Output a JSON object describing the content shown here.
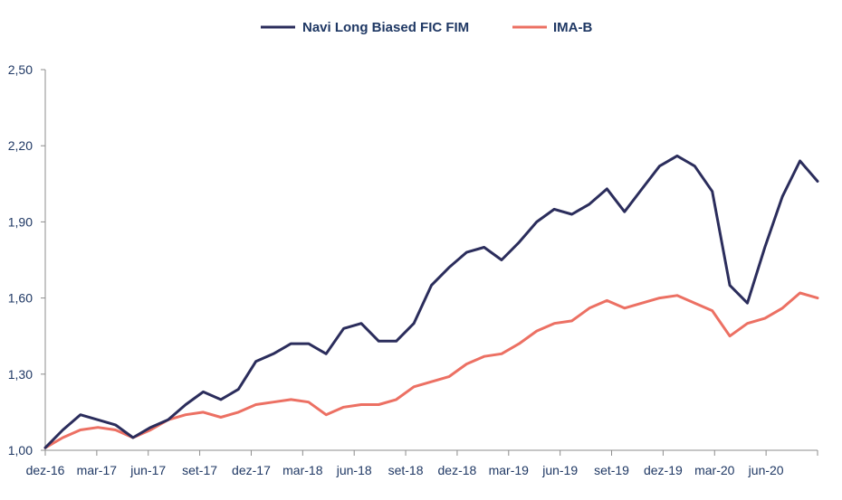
{
  "chart_data": {
    "type": "line",
    "title": "",
    "xlabel": "",
    "ylabel": "",
    "ylim": [
      1.0,
      2.5
    ],
    "grid": false,
    "legend_position": "top-center",
    "y_ticks": [
      "1,00",
      "1,30",
      "1,60",
      "1,90",
      "2,20",
      "2,50"
    ],
    "y_tick_values": [
      1.0,
      1.3,
      1.6,
      1.9,
      2.2,
      2.5
    ],
    "x_ticks": [
      "dez-16",
      "mar-17",
      "jun-17",
      "set-17",
      "dez-17",
      "mar-18",
      "jun-18",
      "set-18",
      "dez-18",
      "mar-19",
      "jun-19",
      "set-19",
      "dez-19",
      "mar-20",
      "jun-20"
    ],
    "x": [
      "2016-12",
      "2017-01",
      "2017-02",
      "2017-03",
      "2017-04",
      "2017-05",
      "2017-06",
      "2017-07",
      "2017-08",
      "2017-09",
      "2017-10",
      "2017-11",
      "2017-12",
      "2018-01",
      "2018-02",
      "2018-03",
      "2018-04",
      "2018-05",
      "2018-06",
      "2018-07",
      "2018-08",
      "2018-09",
      "2018-10",
      "2018-11",
      "2018-12",
      "2019-01",
      "2019-02",
      "2019-03",
      "2019-04",
      "2019-05",
      "2019-06",
      "2019-07",
      "2019-08",
      "2019-09",
      "2019-10",
      "2019-11",
      "2019-12",
      "2020-01",
      "2020-02",
      "2020-03",
      "2020-04",
      "2020-05",
      "2020-06",
      "2020-07",
      "2020-08"
    ],
    "series": [
      {
        "name": "Navi Long Biased FIC FIM",
        "color": "#2b2d5c",
        "values": [
          1.01,
          1.08,
          1.14,
          1.12,
          1.1,
          1.05,
          1.09,
          1.12,
          1.18,
          1.23,
          1.2,
          1.24,
          1.35,
          1.38,
          1.42,
          1.42,
          1.38,
          1.48,
          1.5,
          1.43,
          1.43,
          1.5,
          1.65,
          1.72,
          1.78,
          1.8,
          1.75,
          1.82,
          1.9,
          1.95,
          1.93,
          1.97,
          2.03,
          1.94,
          2.03,
          2.12,
          2.16,
          2.12,
          2.02,
          1.65,
          1.58,
          1.8,
          2.0,
          2.14,
          2.06
        ]
      },
      {
        "name": "IMA-B",
        "color": "#ec7063",
        "values": [
          1.01,
          1.05,
          1.08,
          1.09,
          1.08,
          1.05,
          1.08,
          1.12,
          1.14,
          1.15,
          1.13,
          1.15,
          1.18,
          1.19,
          1.2,
          1.19,
          1.14,
          1.17,
          1.18,
          1.18,
          1.2,
          1.25,
          1.27,
          1.29,
          1.34,
          1.37,
          1.38,
          1.42,
          1.47,
          1.5,
          1.51,
          1.56,
          1.59,
          1.56,
          1.58,
          1.6,
          1.61,
          1.58,
          1.55,
          1.45,
          1.5,
          1.52,
          1.56,
          1.62,
          1.6
        ]
      }
    ]
  }
}
